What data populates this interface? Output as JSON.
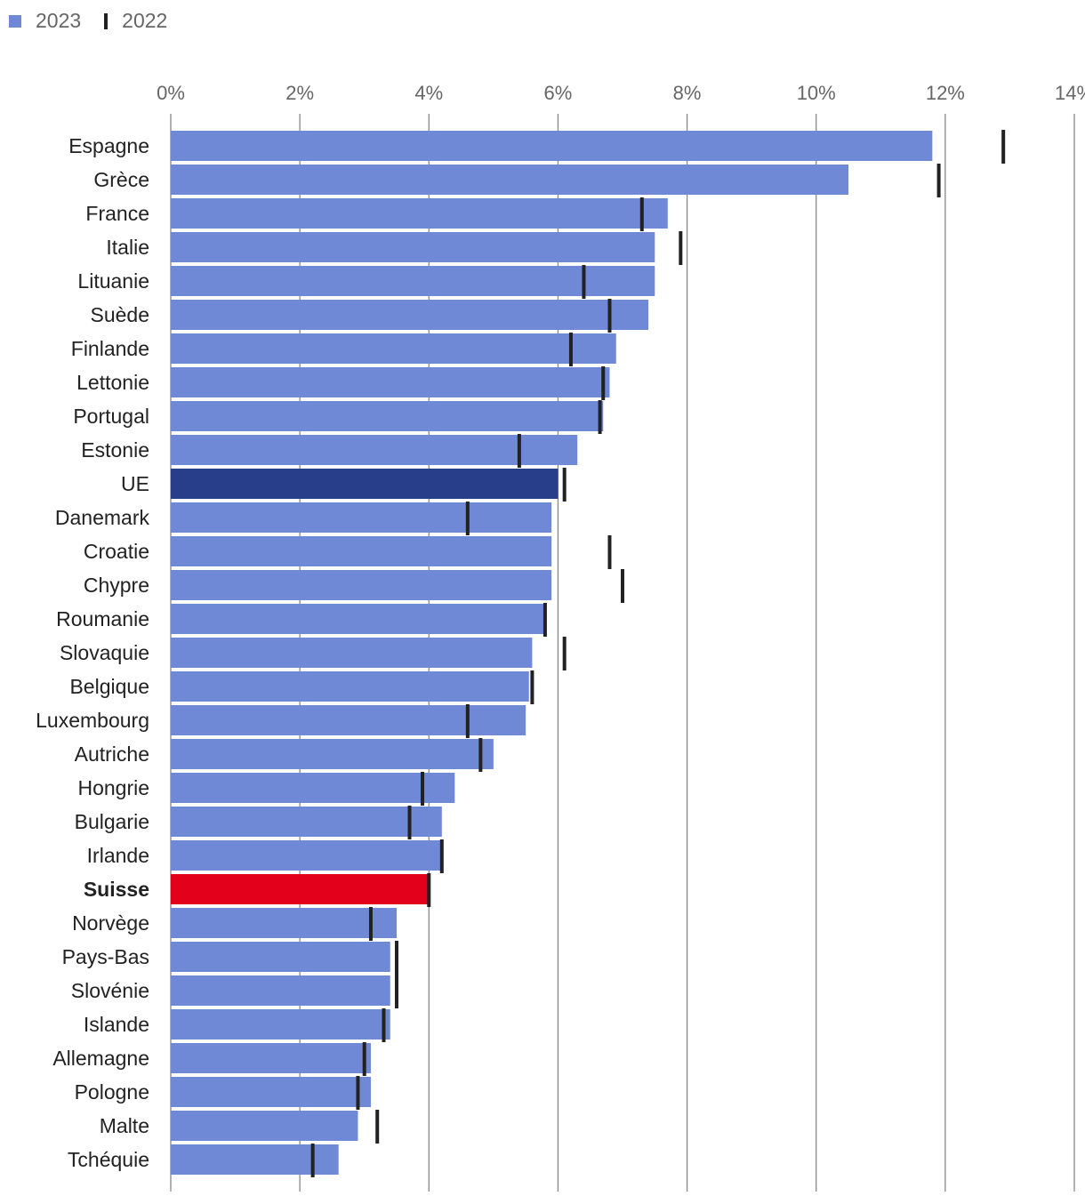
{
  "legend": {
    "series_2023": "2023",
    "series_2022": "2022"
  },
  "colors": {
    "bar_default": "#7089d6",
    "bar_eu": "#283e8a",
    "bar_highlight": "#e2001a",
    "marker_2022": "#222222",
    "gridline": "#888888",
    "tick_label": "#666666",
    "category_label": "#222222"
  },
  "chart_data": {
    "type": "bar",
    "orientation": "horizontal",
    "xlim": [
      0,
      14
    ],
    "x_ticks": [
      0,
      2,
      4,
      6,
      8,
      10,
      12,
      14
    ],
    "x_tick_labels": [
      "0%",
      "2%",
      "4%",
      "6%",
      "8%",
      "10%",
      "12%",
      "14%"
    ],
    "x_axis_position": "top",
    "grid": true,
    "legend_position": "top-left",
    "highlight_category": "Suisse",
    "eu_category": "UE",
    "categories": [
      "Espagne",
      "Grèce",
      "France",
      "Italie",
      "Lituanie",
      "Suède",
      "Finlande",
      "Lettonie",
      "Portugal",
      "Estonie",
      "UE",
      "Danemark",
      "Croatie",
      "Chypre",
      "Roumanie",
      "Slovaquie",
      "Belgique",
      "Luxembourg",
      "Autriche",
      "Hongrie",
      "Bulgarie",
      "Irlande",
      "Suisse",
      "Norvège",
      "Pays-Bas",
      "Slovénie",
      "Islande",
      "Allemagne",
      "Pologne",
      "Malte",
      "Tchéquie"
    ],
    "series": [
      {
        "name": "2023",
        "kind": "bar",
        "values": [
          11.8,
          10.5,
          7.7,
          7.5,
          7.5,
          7.4,
          6.9,
          6.8,
          6.7,
          6.3,
          6.0,
          5.9,
          5.9,
          5.9,
          5.8,
          5.6,
          5.55,
          5.5,
          5.0,
          4.4,
          4.2,
          4.2,
          4.0,
          3.5,
          3.4,
          3.4,
          3.4,
          3.1,
          3.1,
          2.9,
          2.6
        ]
      },
      {
        "name": "2022",
        "kind": "marker",
        "values": [
          12.9,
          11.9,
          7.3,
          7.9,
          6.4,
          6.8,
          6.2,
          6.7,
          6.65,
          5.4,
          6.1,
          4.6,
          6.8,
          7.0,
          5.8,
          6.1,
          5.6,
          4.6,
          4.8,
          3.9,
          3.7,
          4.2,
          4.0,
          3.1,
          3.5,
          3.5,
          3.3,
          3.0,
          2.9,
          3.2,
          2.2
        ]
      }
    ]
  }
}
